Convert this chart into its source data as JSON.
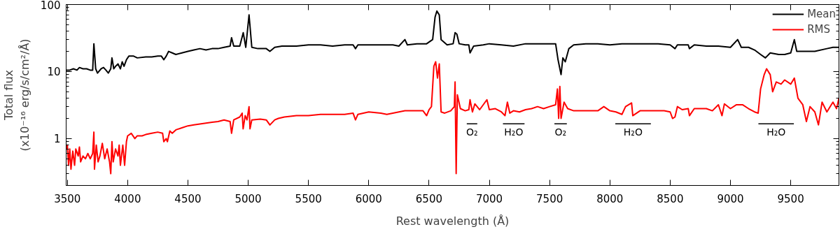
{
  "chart_data": {
    "type": "line",
    "xlabel": "Rest wavelength (Å)",
    "ylabel": "Total flux\n(x10⁻¹⁶ erg/s/cm²/Å)",
    "xlim": [
      3490,
      9900
    ],
    "ylim": [
      0.2,
      100
    ],
    "xticks": [
      3500,
      4000,
      4500,
      5000,
      5500,
      6000,
      6500,
      7000,
      7500,
      8000,
      8500,
      9000,
      9500
    ],
    "yticks": [
      1,
      10,
      100
    ],
    "log": "y",
    "grid": false,
    "legend": "top right",
    "line_style": "solid",
    "marker": "none",
    "annotations": [
      {
        "text": "O₂",
        "x": 6856,
        "y": 1.66
      },
      {
        "text": "H₂O",
        "x": 7202,
        "y": 1.66
      },
      {
        "text": "O₂",
        "x": 7591,
        "y": 1.66
      },
      {
        "text": "H₂O",
        "x": 8192,
        "y": 1.66
      },
      {
        "text": "H₂O",
        "x": 9379,
        "y": 1.66
      }
    ],
    "series": [
      {
        "color": "#000000",
        "x": [
          6813,
          6900
        ],
        "values": [
          1.66,
          1.66
        ]
      },
      {
        "color": "#000000",
        "x": [
          7113,
          7292
        ],
        "values": [
          1.66,
          1.66
        ]
      },
      {
        "color": "#000000",
        "x": [
          7540,
          7643
        ],
        "values": [
          1.66,
          1.66
        ]
      },
      {
        "color": "#000000",
        "x": [
          8045,
          8340
        ],
        "values": [
          1.66,
          1.66
        ]
      },
      {
        "color": "#000000",
        "x": [
          9232,
          9526
        ],
        "values": [
          1.66,
          1.66
        ]
      },
      {
        "name": "Mean",
        "color": "#000000",
        "x": [
          3490,
          3520,
          3550,
          3580,
          3600,
          3630,
          3660,
          3690,
          3710,
          3720,
          3735,
          3750,
          3780,
          3800,
          3820,
          3840,
          3860,
          3870,
          3885,
          3900,
          3920,
          3940,
          3955,
          3970,
          3990,
          4010,
          4050,
          4080,
          4150,
          4200,
          4250,
          4280,
          4300,
          4320,
          4340,
          4370,
          4400,
          4450,
          4500,
          4550,
          4600,
          4650,
          4700,
          4750,
          4800,
          4850,
          4862,
          4880,
          4930,
          4959,
          4980,
          5007,
          5030,
          5080,
          5150,
          5180,
          5220,
          5280,
          5350,
          5400,
          5500,
          5600,
          5700,
          5800,
          5870,
          5890,
          5910,
          6000,
          6100,
          6200,
          6250,
          6300,
          6320,
          6400,
          6480,
          6530,
          6550,
          6565,
          6585,
          6600,
          6650,
          6700,
          6716,
          6731,
          6750,
          6800,
          6830,
          6840,
          6870,
          6950,
          7000,
          7100,
          7200,
          7300,
          7400,
          7500,
          7550,
          7570,
          7595,
          7610,
          7630,
          7660,
          7700,
          7800,
          7900,
          8000,
          8100,
          8200,
          8300,
          8400,
          8500,
          8540,
          8560,
          8650,
          8660,
          8700,
          8800,
          8900,
          9000,
          9060,
          9090,
          9150,
          9200,
          9250,
          9290,
          9330,
          9400,
          9450,
          9500,
          9530,
          9550,
          9600,
          9700,
          9800,
          9850,
          9900
        ],
        "values": [
          10.5,
          10.5,
          11,
          10.5,
          11.5,
          11,
          11,
          10.5,
          10.5,
          26,
          11,
          9.5,
          11,
          11.5,
          10.5,
          9.5,
          11,
          16,
          11,
          12,
          13,
          11,
          14,
          12,
          15,
          17,
          17,
          16,
          16.5,
          16.5,
          17,
          17,
          15,
          17,
          20,
          19,
          18,
          19,
          20,
          21,
          22,
          21,
          22,
          22,
          23,
          24,
          32,
          24,
          24,
          38,
          23,
          70,
          23,
          22,
          22,
          20,
          23,
          24,
          24,
          24,
          25,
          25,
          24,
          25,
          25,
          22,
          25,
          25,
          25,
          25,
          24,
          30,
          25,
          26,
          26,
          30,
          65,
          80,
          70,
          30,
          25,
          26,
          38,
          36,
          26,
          25,
          25,
          19,
          24,
          25,
          26,
          25,
          24,
          26,
          26,
          26,
          26,
          15,
          9,
          16,
          14,
          22,
          25,
          26,
          26,
          25,
          26,
          26,
          26,
          26,
          25,
          22,
          25,
          25,
          22,
          25,
          24,
          24,
          23,
          30,
          23,
          23,
          21,
          18,
          16,
          19,
          18,
          18,
          19,
          30,
          20,
          20,
          20,
          22,
          23,
          23
        ]
      },
      {
        "name": "RMS",
        "color": "#ff0000",
        "x": [
          3490,
          3500,
          3510,
          3520,
          3530,
          3545,
          3560,
          3570,
          3590,
          3600,
          3610,
          3630,
          3650,
          3670,
          3690,
          3710,
          3720,
          3725,
          3740,
          3755,
          3770,
          3790,
          3810,
          3830,
          3850,
          3860,
          3870,
          3880,
          3900,
          3920,
          3930,
          3940,
          3960,
          3975,
          3990,
          4000,
          4030,
          4060,
          4080,
          4120,
          4150,
          4200,
          4250,
          4290,
          4300,
          4320,
          4330,
          4350,
          4370,
          4400,
          4450,
          4500,
          4550,
          4600,
          4650,
          4700,
          4750,
          4800,
          4850,
          4862,
          4880,
          4930,
          4950,
          4958,
          4975,
          4990,
          5007,
          5015,
          5030,
          5100,
          5150,
          5180,
          5220,
          5250,
          5300,
          5350,
          5400,
          5500,
          5600,
          5700,
          5800,
          5870,
          5890,
          5910,
          6000,
          6100,
          6150,
          6200,
          6250,
          6300,
          6400,
          6450,
          6480,
          6500,
          6520,
          6540,
          6555,
          6570,
          6585,
          6600,
          6630,
          6680,
          6710,
          6716,
          6725,
          6735,
          6760,
          6800,
          6830,
          6840,
          6860,
          6880,
          6920,
          6980,
          7000,
          7050,
          7100,
          7130,
          7150,
          7170,
          7200,
          7250,
          7300,
          7350,
          7400,
          7450,
          7500,
          7550,
          7565,
          7575,
          7585,
          7595,
          7620,
          7650,
          7700,
          7800,
          7900,
          7950,
          8000,
          8050,
          8100,
          8130,
          8180,
          8190,
          8250,
          8300,
          8400,
          8450,
          8500,
          8520,
          8540,
          8560,
          8600,
          8650,
          8660,
          8700,
          8800,
          8850,
          8900,
          8930,
          8950,
          9000,
          9050,
          9100,
          9150,
          9200,
          9230,
          9250,
          9280,
          9300,
          9330,
          9350,
          9380,
          9420,
          9450,
          9500,
          9530,
          9560,
          9600,
          9630,
          9660,
          9700,
          9730,
          9760,
          9800,
          9850,
          9880,
          9900
        ],
        "values": [
          0.7,
          0.8,
          0.4,
          0.7,
          0.35,
          0.65,
          0.4,
          0.7,
          0.55,
          0.75,
          0.45,
          0.55,
          0.5,
          0.6,
          0.5,
          0.6,
          1.25,
          0.35,
          0.8,
          0.45,
          0.55,
          0.85,
          0.5,
          0.7,
          0.45,
          0.3,
          0.9,
          0.45,
          0.7,
          0.55,
          0.8,
          0.4,
          0.8,
          0.4,
          0.9,
          1.1,
          1.2,
          1.0,
          1.1,
          1.1,
          1.15,
          1.2,
          1.25,
          1.2,
          0.9,
          1.0,
          0.9,
          1.3,
          1.2,
          1.35,
          1.45,
          1.55,
          1.6,
          1.65,
          1.7,
          1.75,
          1.8,
          1.9,
          1.8,
          1.2,
          1.9,
          2.1,
          2.4,
          1.4,
          2.2,
          1.9,
          3.0,
          1.4,
          1.9,
          1.95,
          1.9,
          1.6,
          1.9,
          2.0,
          2.1,
          2.15,
          2.2,
          2.2,
          2.3,
          2.3,
          2.3,
          2.4,
          1.9,
          2.3,
          2.5,
          2.4,
          2.3,
          2.4,
          2.5,
          2.6,
          2.6,
          2.6,
          2.2,
          2.7,
          3.0,
          12,
          14,
          8,
          13,
          2.5,
          2.4,
          2.6,
          3.0,
          7,
          0.3,
          4.5,
          2.8,
          2.6,
          2.7,
          3.8,
          2.5,
          3.3,
          2.7,
          3.8,
          2.7,
          2.8,
          2.5,
          2.2,
          3.5,
          2.4,
          2.6,
          2.5,
          2.7,
          2.8,
          3.0,
          2.8,
          3.0,
          3.2,
          5.5,
          2.0,
          6.0,
          2.0,
          3.5,
          2.8,
          2.6,
          2.6,
          2.6,
          3.0,
          2.6,
          2.5,
          2.3,
          3.0,
          3.4,
          2.2,
          2.6,
          2.6,
          2.6,
          2.6,
          2.5,
          2.0,
          2.1,
          3.0,
          2.7,
          2.8,
          2.2,
          2.8,
          2.8,
          2.6,
          3.2,
          2.2,
          3.3,
          2.8,
          3.2,
          3.2,
          2.8,
          2.5,
          2.4,
          5.5,
          9,
          11,
          9,
          5.0,
          7,
          6.5,
          7.5,
          6.5,
          8,
          4.0,
          3.2,
          1.8,
          3.0,
          2.5,
          1.6,
          3.5,
          2.5,
          3.5,
          2.8,
          4.0
        ]
      }
    ]
  }
}
